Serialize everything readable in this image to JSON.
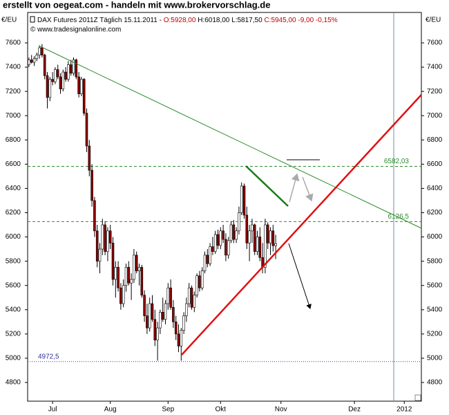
{
  "header": {
    "title": "erstellt von oegeat.com - handeln mit www.brokervorschlag.de",
    "y_unit_left": "€/EU",
    "y_unit_right": "€/EU",
    "instrument": "DAX Futures 2011Z Täglich",
    "date": "15.11.2011 -",
    "open": "O:5928,00",
    "high": "H:6018,00",
    "low": "L:5817,50",
    "close": "C:5945,00 -9,00 -0,15%",
    "source": "© www.tradesignalonline.com"
  },
  "chart_data": {
    "type": "candlestick",
    "ylim": [
      4646,
      7851
    ],
    "yticks": [
      4800,
      5000,
      5200,
      5400,
      5600,
      5800,
      6000,
      6200,
      6400,
      6600,
      6800,
      7000,
      7200,
      7400,
      7600
    ],
    "up_color": "#ffffff",
    "down_color": "#8b0000",
    "categories": [
      null,
      null,
      null,
      null,
      null,
      null,
      null,
      null,
      null,
      "Jul",
      null,
      null,
      null,
      null,
      null,
      null,
      null,
      null,
      null,
      null,
      null,
      null,
      null,
      null,
      null,
      null,
      null,
      null,
      null,
      null,
      null,
      "Aug",
      null,
      null,
      null,
      null,
      null,
      null,
      null,
      null,
      null,
      null,
      null,
      null,
      null,
      null,
      null,
      null,
      null,
      null,
      null,
      null,
      null,
      "Sep",
      null,
      null,
      null,
      null,
      null,
      null,
      null,
      null,
      null,
      null,
      null,
      null,
      null,
      null,
      null,
      null,
      null,
      null,
      null,
      "Okt",
      null,
      null,
      null,
      null,
      null,
      null,
      null,
      null,
      null,
      null,
      null,
      null,
      null,
      null,
      null,
      null,
      null,
      null,
      null,
      null,
      null,
      null,
      "Nov",
      null,
      null,
      null,
      null,
      null,
      null,
      null,
      null,
      null,
      null,
      null,
      null,
      null,
      null,
      null,
      null,
      null,
      null,
      null,
      null,
      null,
      null,
      null,
      null,
      null,
      null,
      null,
      "Dez",
      null,
      null,
      null,
      null,
      null,
      null,
      null,
      null,
      null,
      null,
      null,
      null,
      null,
      null,
      null,
      null,
      null,
      null,
      "2012",
      null,
      null,
      null,
      null,
      null,
      null
    ],
    "candles": [
      {
        "open": 7420,
        "high": 7480,
        "low": 7400,
        "close": 7460
      },
      {
        "open": 7460,
        "high": 7500,
        "low": 7430,
        "close": 7440
      },
      {
        "open": 7440,
        "high": 7490,
        "low": 7410,
        "close": 7470
      },
      {
        "open": 7470,
        "high": 7520,
        "low": 7450,
        "close": 7500
      },
      {
        "open": 7500,
        "high": 7580,
        "low": 7470,
        "close": 7560
      },
      {
        "open": 7560,
        "high": 7590,
        "low": 7480,
        "close": 7500
      },
      {
        "open": 7500,
        "high": 7510,
        "low": 7300,
        "close": 7330
      },
      {
        "open": 7330,
        "high": 7360,
        "low": 7060,
        "close": 7150
      },
      {
        "open": 7150,
        "high": 7320,
        "low": 7120,
        "close": 7300
      },
      {
        "open": 7300,
        "high": 7360,
        "low": 7250,
        "close": 7280
      },
      {
        "open": 7280,
        "high": 7400,
        "low": 7260,
        "close": 7380
      },
      {
        "open": 7380,
        "high": 7420,
        "low": 7300,
        "close": 7320
      },
      {
        "open": 7320,
        "high": 7350,
        "low": 7180,
        "close": 7220
      },
      {
        "open": 7220,
        "high": 7380,
        "low": 7200,
        "close": 7360
      },
      {
        "open": 7360,
        "high": 7400,
        "low": 7280,
        "close": 7300
      },
      {
        "open": 7300,
        "high": 7450,
        "low": 7280,
        "close": 7420
      },
      {
        "open": 7420,
        "high": 7460,
        "low": 7330,
        "close": 7350
      },
      {
        "open": 7350,
        "high": 7480,
        "low": 7330,
        "close": 7460
      },
      {
        "open": 7460,
        "high": 7470,
        "low": 7300,
        "close": 7320
      },
      {
        "open": 7320,
        "high": 7360,
        "low": 7150,
        "close": 7180
      },
      {
        "open": 7180,
        "high": 7320,
        "low": 7160,
        "close": 7300
      },
      {
        "open": 7300,
        "high": 7310,
        "low": 7000,
        "close": 7020
      },
      {
        "open": 7020,
        "high": 7060,
        "low": 6700,
        "close": 6750
      },
      {
        "open": 6750,
        "high": 6800,
        "low": 6500,
        "close": 6550
      },
      {
        "open": 6550,
        "high": 6600,
        "low": 6250,
        "close": 6300
      },
      {
        "open": 6300,
        "high": 6330,
        "low": 6000,
        "close": 6050
      },
      {
        "open": 6050,
        "high": 6100,
        "low": 5750,
        "close": 5800
      },
      {
        "open": 5800,
        "high": 5950,
        "low": 5700,
        "close": 5900
      },
      {
        "open": 5900,
        "high": 6150,
        "low": 5850,
        "close": 6100
      },
      {
        "open": 6100,
        "high": 6130,
        "low": 5850,
        "close": 5880
      },
      {
        "open": 5880,
        "high": 6080,
        "low": 5800,
        "close": 6050
      },
      {
        "open": 6050,
        "high": 6100,
        "low": 5900,
        "close": 5950
      },
      {
        "open": 5950,
        "high": 6000,
        "low": 5600,
        "close": 5650
      },
      {
        "open": 5650,
        "high": 5800,
        "low": 5500,
        "close": 5750
      },
      {
        "open": 5750,
        "high": 5800,
        "low": 5550,
        "close": 5580
      },
      {
        "open": 5580,
        "high": 5620,
        "low": 5400,
        "close": 5450
      },
      {
        "open": 5450,
        "high": 5650,
        "low": 5420,
        "close": 5600
      },
      {
        "open": 5600,
        "high": 5780,
        "low": 5550,
        "close": 5750
      },
      {
        "open": 5750,
        "high": 5800,
        "low": 5600,
        "close": 5620
      },
      {
        "open": 5620,
        "high": 5700,
        "low": 5480,
        "close": 5650
      },
      {
        "open": 5650,
        "high": 5900,
        "low": 5620,
        "close": 5850
      },
      {
        "open": 5850,
        "high": 5880,
        "low": 5700,
        "close": 5720
      },
      {
        "open": 5720,
        "high": 5780,
        "low": 5600,
        "close": 5750
      },
      {
        "open": 5750,
        "high": 5770,
        "low": 5500,
        "close": 5520
      },
      {
        "open": 5520,
        "high": 5560,
        "low": 5300,
        "close": 5350
      },
      {
        "open": 5350,
        "high": 5450,
        "low": 5200,
        "close": 5250
      },
      {
        "open": 5250,
        "high": 5500,
        "low": 5220,
        "close": 5450
      },
      {
        "open": 5450,
        "high": 5520,
        "low": 5300,
        "close": 5320
      },
      {
        "open": 5320,
        "high": 5400,
        "low": 5100,
        "close": 5150
      },
      {
        "open": 5150,
        "high": 5300,
        "low": 4980,
        "close": 5250
      },
      {
        "open": 5250,
        "high": 5400,
        "low": 5200,
        "close": 5380
      },
      {
        "open": 5380,
        "high": 5500,
        "low": 5300,
        "close": 5320
      },
      {
        "open": 5320,
        "high": 5480,
        "low": 5280,
        "close": 5450
      },
      {
        "open": 5450,
        "high": 5620,
        "low": 5400,
        "close": 5580
      },
      {
        "open": 5580,
        "high": 5650,
        "low": 5400,
        "close": 5420
      },
      {
        "open": 5420,
        "high": 5480,
        "low": 5250,
        "close": 5300
      },
      {
        "open": 5300,
        "high": 5350,
        "low": 5150,
        "close": 5200
      },
      {
        "open": 5200,
        "high": 5280,
        "low": 5050,
        "close": 5100
      },
      {
        "open": 5100,
        "high": 5250,
        "low": 4980,
        "close": 5230
      },
      {
        "open": 5230,
        "high": 5380,
        "low": 5200,
        "close": 5350
      },
      {
        "open": 5350,
        "high": 5500,
        "low": 5300,
        "close": 5450
      },
      {
        "open": 5450,
        "high": 5620,
        "low": 5420,
        "close": 5580
      },
      {
        "open": 5580,
        "high": 5600,
        "low": 5400,
        "close": 5420
      },
      {
        "open": 5420,
        "high": 5550,
        "low": 5380,
        "close": 5520
      },
      {
        "open": 5520,
        "high": 5700,
        "low": 5500,
        "close": 5680
      },
      {
        "open": 5680,
        "high": 5720,
        "low": 5550,
        "close": 5580
      },
      {
        "open": 5580,
        "high": 5750,
        "low": 5560,
        "close": 5720
      },
      {
        "open": 5720,
        "high": 5880,
        "low": 5700,
        "close": 5850
      },
      {
        "open": 5850,
        "high": 5900,
        "low": 5750,
        "close": 5780
      },
      {
        "open": 5780,
        "high": 5950,
        "low": 5760,
        "close": 5920
      },
      {
        "open": 5920,
        "high": 6000,
        "low": 5850,
        "close": 5880
      },
      {
        "open": 5880,
        "high": 6050,
        "low": 5860,
        "close": 6020
      },
      {
        "open": 6020,
        "high": 6060,
        "low": 5900,
        "close": 5930
      },
      {
        "open": 5930,
        "high": 6080,
        "low": 5900,
        "close": 6050
      },
      {
        "open": 6050,
        "high": 6100,
        "low": 5950,
        "close": 5980
      },
      {
        "open": 5980,
        "high": 6030,
        "low": 5800,
        "close": 5850
      },
      {
        "open": 5850,
        "high": 6000,
        "low": 5820,
        "close": 5970
      },
      {
        "open": 5970,
        "high": 6130,
        "low": 5950,
        "close": 6100
      },
      {
        "open": 6100,
        "high": 6140,
        "low": 5950,
        "close": 5980
      },
      {
        "open": 5980,
        "high": 6080,
        "low": 5950,
        "close": 6050
      },
      {
        "open": 6050,
        "high": 6250,
        "low": 6020,
        "close": 6200
      },
      {
        "open": 6200,
        "high": 6450,
        "low": 6180,
        "close": 6420
      },
      {
        "open": 6420,
        "high": 6440,
        "low": 6150,
        "close": 6180
      },
      {
        "open": 6180,
        "high": 6250,
        "low": 5900,
        "close": 5950
      },
      {
        "open": 5950,
        "high": 6100,
        "low": 5800,
        "close": 6050
      },
      {
        "open": 6050,
        "high": 6150,
        "low": 5950,
        "close": 6100
      },
      {
        "open": 6100,
        "high": 6110,
        "low": 5850,
        "close": 5880
      },
      {
        "open": 5880,
        "high": 6050,
        "low": 5850,
        "close": 6000
      },
      {
        "open": 6000,
        "high": 6080,
        "low": 5800,
        "close": 5830
      },
      {
        "open": 5830,
        "high": 5950,
        "low": 5700,
        "close": 5750
      },
      {
        "open": 5750,
        "high": 6150,
        "low": 5700,
        "close": 6100
      },
      {
        "open": 6100,
        "high": 6120,
        "low": 5900,
        "close": 5950
      },
      {
        "open": 5950,
        "high": 6080,
        "low": 5850,
        "close": 6050
      },
      {
        "open": 6050,
        "high": 6100,
        "low": 5880,
        "close": 5928
      },
      {
        "open": 5928,
        "high": 6018,
        "low": 5817.5,
        "close": 5945
      },
      null,
      null,
      null,
      null,
      null,
      null,
      null,
      null,
      null,
      null,
      null,
      null,
      null,
      null,
      null,
      null,
      null,
      null,
      null,
      null,
      null,
      null,
      null,
      null,
      null,
      null,
      null,
      null,
      null,
      null,
      null,
      null,
      null,
      null,
      null,
      null,
      null,
      null,
      null,
      null,
      null,
      null,
      null,
      null,
      null,
      null,
      null,
      null,
      null,
      null,
      null,
      null,
      null,
      null,
      null
    ],
    "hlines": [
      {
        "value": 6582.03,
        "label": "6582,03",
        "color": "#2e8b2e",
        "style": "dashed",
        "label_side": "right"
      },
      {
        "value": 6126.5,
        "label": "6126,5",
        "color": "#2e8b2e",
        "style": "dashed",
        "label_side": "right"
      },
      {
        "value": 4972.5,
        "label": "4972,5",
        "color": "#3030a0",
        "style": "dotted",
        "label_side": "left"
      }
    ]
  }
}
